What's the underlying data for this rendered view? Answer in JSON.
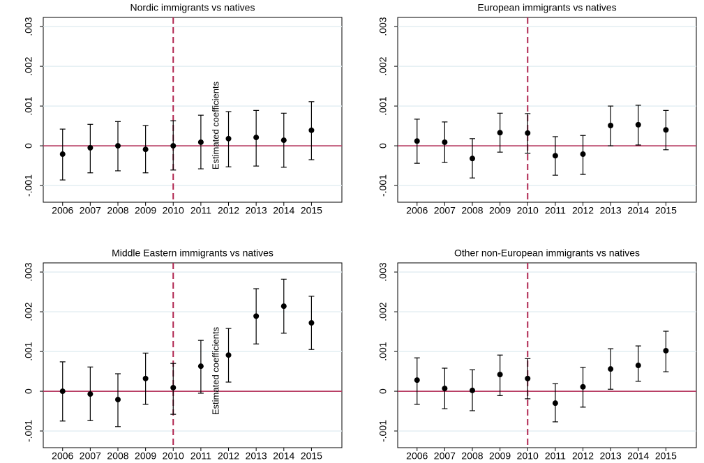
{
  "chart_data": [
    {
      "type": "errorbar",
      "title": "Nordic immigrants vs natives",
      "annotation": "Estimated coefficients",
      "x": [
        2006,
        2007,
        2008,
        2009,
        2010,
        2011,
        2012,
        2013,
        2014,
        2015
      ],
      "values": [
        -0.00021,
        -5e-05,
        0,
        -9e-05,
        0,
        9e-05,
        0.00018,
        0.00021,
        0.00014,
        0.00039
      ],
      "lower": [
        -0.00086,
        -0.00068,
        -0.00063,
        -0.00068,
        -0.00061,
        -0.00058,
        -0.00053,
        -0.00051,
        -0.00054,
        -0.00035
      ],
      "upper": [
        0.00042,
        0.00054,
        0.00061,
        0.00051,
        0.00063,
        0.00077,
        0.00086,
        0.00089,
        0.00082,
        0.00111
      ],
      "xlim": [
        2005.3,
        2016.1
      ],
      "xticks": [
        2006,
        2007,
        2008,
        2009,
        2010,
        2011,
        2012,
        2013,
        2014,
        2015
      ],
      "ylim": [
        -0.00142,
        0.00323
      ],
      "yticks": [
        {
          "value": -0.001,
          "label": "-.001"
        },
        0,
        {
          "value": 0.001,
          "label": ".001"
        },
        {
          "value": 0.002,
          "label": ".002"
        },
        {
          "value": 0.003,
          "label": ".003"
        }
      ],
      "vline": 2010,
      "hline": 0,
      "grid": true,
      "color": "#000000",
      "line_color": "#b0254f"
    },
    {
      "type": "errorbar",
      "title": "European immigrants vs natives",
      "x": [
        2006,
        2007,
        2008,
        2009,
        2010,
        2011,
        2012,
        2013,
        2014,
        2015
      ],
      "values": [
        0.00012,
        9e-05,
        -0.00032,
        0.00033,
        0.00032,
        -0.00025,
        -0.00021,
        0.00051,
        0.00053,
        0.0004
      ],
      "lower": [
        -0.00044,
        -0.00042,
        -0.00081,
        -0.00016,
        -0.00019,
        -0.00074,
        -0.00072,
        0,
        2e-05,
        -0.0001
      ],
      "upper": [
        0.00067,
        0.0006,
        0.00018,
        0.00082,
        0.00081,
        0.00023,
        0.00026,
        0.001,
        0.00102,
        0.00089
      ],
      "xlim": [
        2005.3,
        2016.1
      ],
      "xticks": [
        2006,
        2007,
        2008,
        2009,
        2010,
        2011,
        2012,
        2013,
        2014,
        2015
      ],
      "ylim": [
        -0.00142,
        0.00323
      ],
      "yticks": [
        {
          "value": -0.001,
          "label": "-.001"
        },
        0,
        {
          "value": 0.001,
          "label": ".001"
        },
        {
          "value": 0.002,
          "label": ".002"
        },
        {
          "value": 0.003,
          "label": ".003"
        }
      ],
      "vline": 2010,
      "hline": 0,
      "grid": true,
      "color": "#000000",
      "line_color": "#b0254f"
    },
    {
      "type": "errorbar",
      "title": "Middle Eastern immigrants vs natives",
      "annotation": "Estimated coefficients",
      "x": [
        2006,
        2007,
        2008,
        2009,
        2010,
        2011,
        2012,
        2013,
        2014,
        2015
      ],
      "values": [
        0,
        -7e-05,
        -0.00021,
        0.00032,
        9e-05,
        0.00063,
        0.00091,
        0.00189,
        0.00214,
        0.00172
      ],
      "lower": [
        -0.00075,
        -0.00074,
        -0.00089,
        -0.00033,
        -0.00058,
        -5e-05,
        0.00023,
        0.00119,
        0.00146,
        0.00105
      ],
      "upper": [
        0.00074,
        0.00061,
        0.00044,
        0.00096,
        0.0007,
        0.00128,
        0.00158,
        0.00258,
        0.00282,
        0.00239
      ],
      "xlim": [
        2005.3,
        2016.1
      ],
      "xticks": [
        2006,
        2007,
        2008,
        2009,
        2010,
        2011,
        2012,
        2013,
        2014,
        2015
      ],
      "ylim": [
        -0.00142,
        0.00323
      ],
      "yticks": [
        {
          "value": -0.001,
          "label": "-.001"
        },
        0,
        {
          "value": 0.001,
          "label": ".001"
        },
        {
          "value": 0.002,
          "label": ".002"
        },
        {
          "value": 0.003,
          "label": ".003"
        }
      ],
      "vline": 2010,
      "hline": 0,
      "grid": true,
      "color": "#000000",
      "line_color": "#b0254f"
    },
    {
      "type": "errorbar",
      "title": "Other non-European immigrants vs natives",
      "x": [
        2006,
        2007,
        2008,
        2009,
        2010,
        2011,
        2012,
        2013,
        2014,
        2015
      ],
      "values": [
        0.00028,
        7e-05,
        2e-05,
        0.00042,
        0.00032,
        -0.0003,
        0.00011,
        0.00056,
        0.00065,
        0.00102
      ],
      "lower": [
        -0.00033,
        -0.00044,
        -0.00049,
        -0.00011,
        -0.00019,
        -0.00077,
        -0.0004,
        5e-05,
        0.00025,
        0.00049
      ],
      "upper": [
        0.00084,
        0.00058,
        0.00054,
        0.00091,
        0.00082,
        0.00019,
        0.0006,
        0.00107,
        0.00114,
        0.00151
      ],
      "xlim": [
        2005.3,
        2016.1
      ],
      "xticks": [
        2006,
        2007,
        2008,
        2009,
        2010,
        2011,
        2012,
        2013,
        2014,
        2015
      ],
      "ylim": [
        -0.00142,
        0.00323
      ],
      "yticks": [
        {
          "value": -0.001,
          "label": "-.001"
        },
        0,
        {
          "value": 0.001,
          "label": ".001"
        },
        {
          "value": 0.002,
          "label": ".002"
        },
        {
          "value": 0.003,
          "label": ".003"
        }
      ],
      "vline": 2010,
      "hline": 0,
      "grid": true,
      "color": "#000000",
      "line_color": "#b0254f"
    }
  ]
}
